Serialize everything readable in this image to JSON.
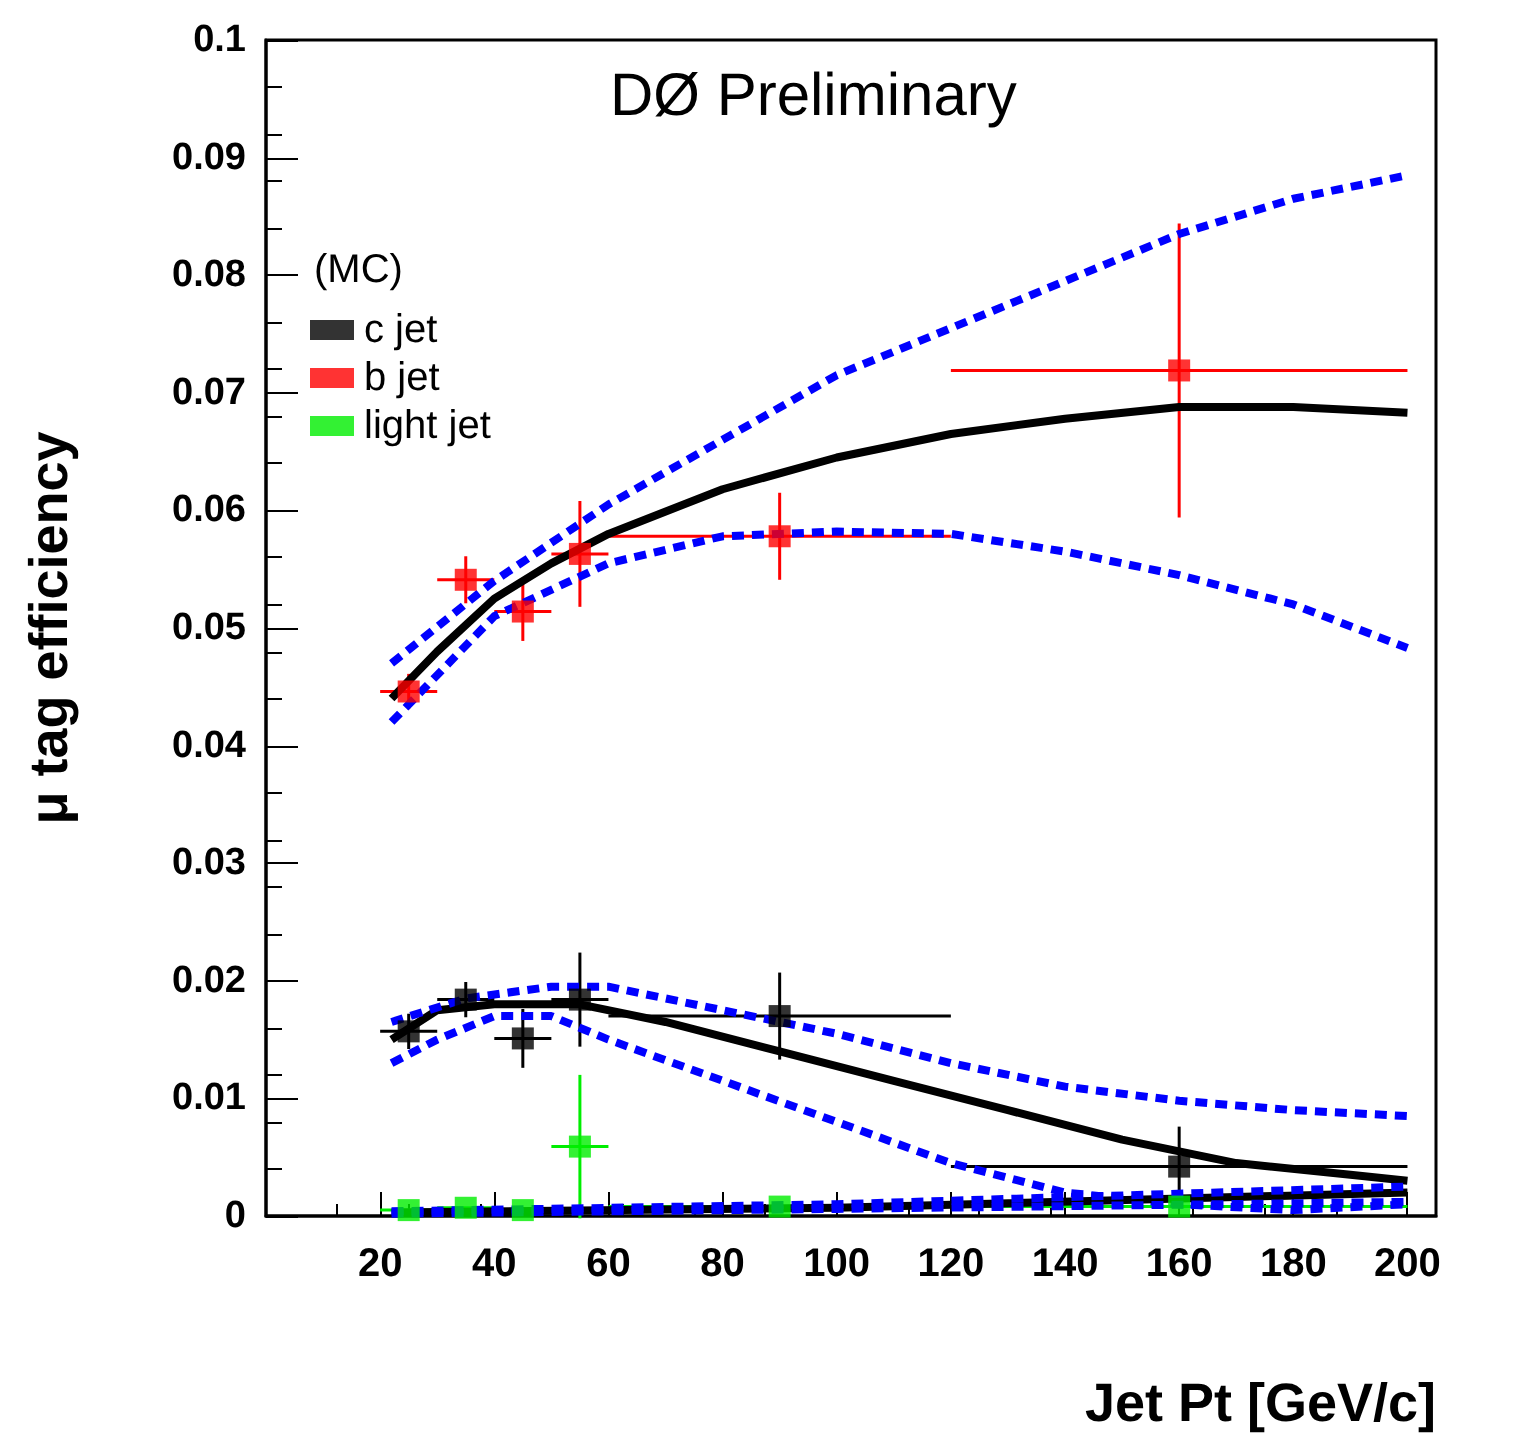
{
  "chart_data": {
    "type": "scatter",
    "xlabel": "Jet Pt [GeV/c]",
    "ylabel": "μ tag efficiency",
    "legend_title": "(MC)",
    "annotations": [
      "DØ Preliminary"
    ],
    "xlim": [
      0,
      205
    ],
    "xticks": [
      20,
      40,
      60,
      80,
      100,
      120,
      140,
      160,
      180,
      200
    ],
    "ylim": [
      0,
      0.1
    ],
    "yticks": [
      0,
      0.01,
      0.02,
      0.03,
      0.04,
      0.05,
      0.06,
      0.07,
      0.08,
      0.09,
      0.1
    ],
    "grid": false,
    "legend": "top left",
    "marker": "square",
    "series": [
      {
        "name": "c jet",
        "color": "#000000",
        "x": [
          25,
          35,
          45,
          55,
          90,
          160
        ],
        "values": [
          0.0157,
          0.0184,
          0.0151,
          0.0184,
          0.017,
          0.0042
        ],
        "errors": [
          0.0015,
          0.0015,
          0.0025,
          0.004,
          0.0037,
          0.0034
        ],
        "xerrors": [
          5,
          5,
          5,
          5,
          30,
          40
        ]
      },
      {
        "name": "b jet",
        "color": "#ff0000",
        "x": [
          25,
          35,
          45,
          55,
          90,
          160
        ],
        "values": [
          0.0446,
          0.0541,
          0.0514,
          0.0563,
          0.0578,
          0.0719
        ],
        "errors": [
          0.0015,
          0.002,
          0.0025,
          0.0045,
          0.0037,
          0.0125
        ],
        "xerrors": [
          5,
          5,
          5,
          5,
          30,
          40
        ]
      },
      {
        "name": "light jet",
        "color": "#00ee00",
        "x": [
          25,
          35,
          45,
          55,
          90,
          160
        ],
        "values": [
          0.0005,
          0.0007,
          0.0005,
          0.0059,
          0.0008,
          0.0008
        ],
        "errors": [
          null,
          null,
          null,
          0.0061,
          null,
          null
        ],
        "xerrors": [
          5,
          5,
          5,
          5,
          30,
          40
        ]
      },
      {
        "type": "line",
        "color": "#000000",
        "line_style": "solid",
        "marker": "none",
        "x": [
          22,
          30,
          40,
          50,
          60,
          80,
          100,
          120,
          140,
          160,
          180,
          200
        ],
        "values": [
          0.044,
          0.048,
          0.0525,
          0.0555,
          0.058,
          0.0618,
          0.0645,
          0.0665,
          0.0678,
          0.0688,
          0.0688,
          0.0683
        ]
      },
      {
        "type": "line",
        "color": "#0000ff",
        "line_style": "dashed",
        "marker": "none",
        "x": [
          22,
          40,
          60,
          80,
          100,
          120,
          140,
          160,
          180,
          200
        ],
        "values": [
          0.047,
          0.054,
          0.0605,
          0.066,
          0.0715,
          0.0755,
          0.0795,
          0.0835,
          0.0865,
          0.0885
        ]
      },
      {
        "type": "line",
        "color": "#0000ff",
        "line_style": "dashed",
        "marker": "none",
        "x": [
          22,
          40,
          60,
          80,
          100,
          120,
          140,
          160,
          180,
          200
        ],
        "values": [
          0.042,
          0.051,
          0.0555,
          0.0578,
          0.0582,
          0.058,
          0.0565,
          0.0545,
          0.052,
          0.0483
        ]
      },
      {
        "type": "line",
        "color": "#000000",
        "line_style": "solid",
        "marker": "none",
        "x": [
          22,
          30,
          40,
          55,
          70,
          90,
          110,
          130,
          150,
          170,
          190,
          200
        ],
        "values": [
          0.015,
          0.0175,
          0.018,
          0.018,
          0.0165,
          0.014,
          0.0115,
          0.009,
          0.0065,
          0.0045,
          0.0035,
          0.003
        ]
      },
      {
        "type": "line",
        "color": "#0000ff",
        "line_style": "dashed",
        "marker": "none",
        "x": [
          22,
          35,
          50,
          60,
          80,
          100,
          120,
          140,
          160,
          180,
          200
        ],
        "values": [
          0.0165,
          0.0185,
          0.0195,
          0.0195,
          0.0175,
          0.0155,
          0.013,
          0.011,
          0.0098,
          0.009,
          0.0085
        ]
      },
      {
        "type": "line",
        "color": "#0000ff",
        "line_style": "dashed",
        "marker": "none",
        "x": [
          22,
          30,
          40,
          50,
          60,
          80,
          100,
          120,
          140,
          160,
          180,
          200
        ],
        "values": [
          0.013,
          0.015,
          0.017,
          0.017,
          0.015,
          0.0115,
          0.008,
          0.0045,
          0.002,
          0.001,
          0.0005,
          0.001
        ]
      },
      {
        "type": "line",
        "color": "#000000",
        "line_style": "solid",
        "marker": "none",
        "x": [
          22,
          100,
          200
        ],
        "values": [
          0.0003,
          0.0007,
          0.002
        ]
      },
      {
        "type": "line",
        "color": "#0000ff",
        "line_style": "dashed",
        "marker": "none",
        "x": [
          22,
          100,
          200
        ],
        "values": [
          0.0004,
          0.001,
          0.0025
        ]
      },
      {
        "type": "line",
        "color": "#0000ff",
        "line_style": "dashed",
        "marker": "none",
        "x": [
          22,
          100,
          200
        ],
        "values": [
          0.0002,
          0.0006,
          0.0012
        ]
      }
    ]
  }
}
